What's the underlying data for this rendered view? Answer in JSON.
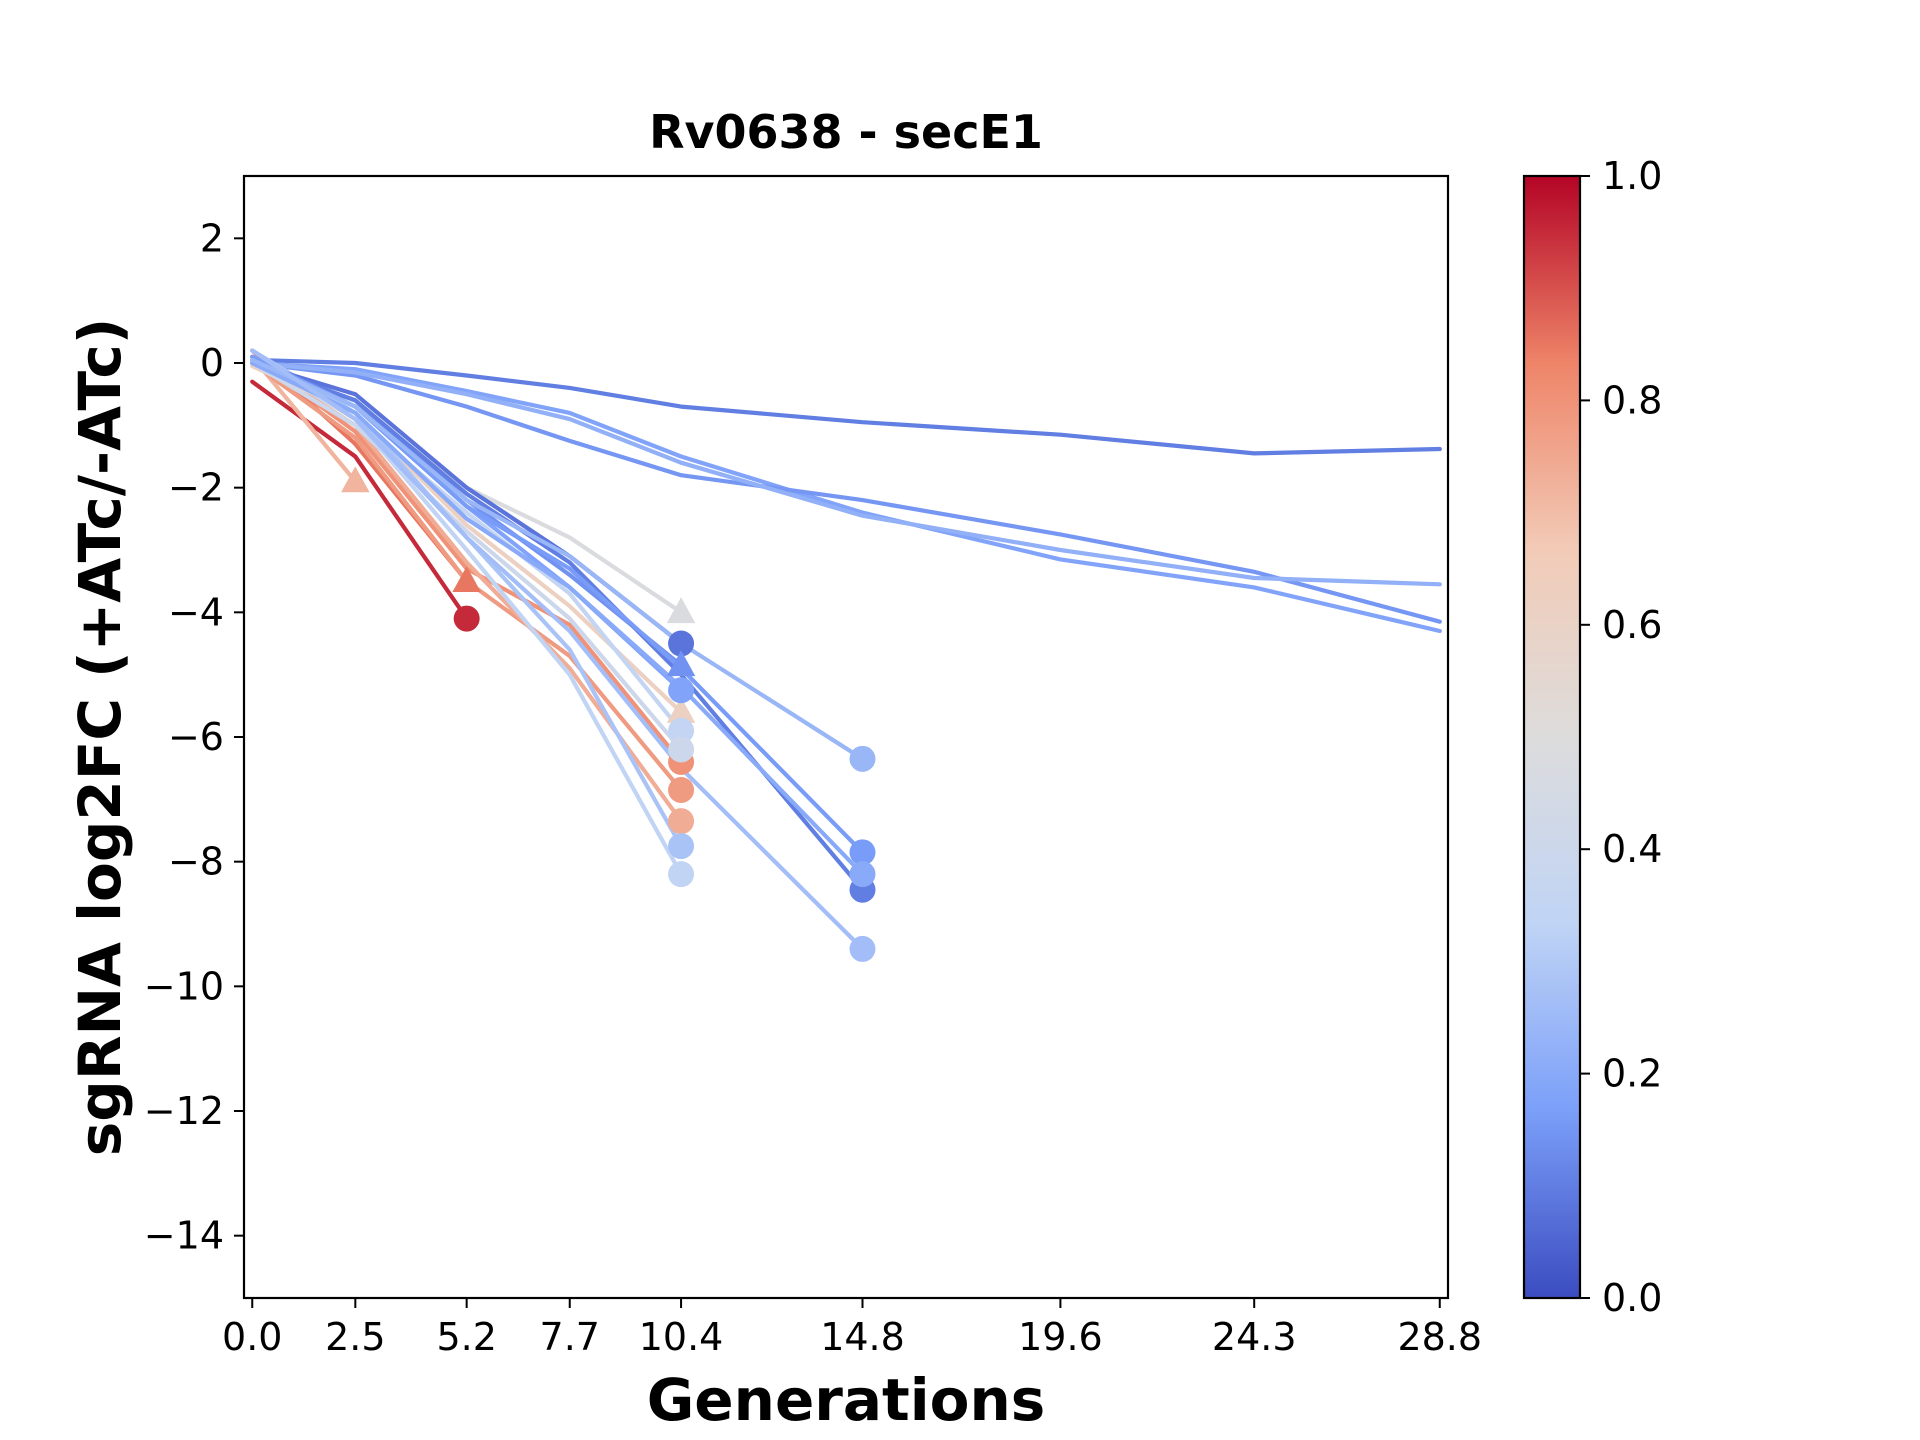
{
  "chart_data": {
    "type": "line",
    "title": "Rv0638 - secE1",
    "xlabel": "Generations",
    "ylabel": "sgRNA log2FC (+ATc/-ATc)",
    "xlim": [
      -0.2,
      29.0
    ],
    "ylim": [
      -15,
      3
    ],
    "x_ticks": [
      0.0,
      2.5,
      5.2,
      7.7,
      10.4,
      14.8,
      19.6,
      24.3,
      28.8
    ],
    "x_tick_labels": [
      "0.0",
      "2.5",
      "5.2",
      "7.7",
      "10.4",
      "14.8",
      "19.6",
      "24.3",
      "28.8"
    ],
    "y_ticks": [
      2,
      0,
      -2,
      -4,
      -6,
      -8,
      -10,
      -12,
      -14
    ],
    "y_tick_labels": [
      "2",
      "0",
      "−2",
      "−4",
      "−6",
      "−8",
      "−10",
      "−12",
      "−14"
    ],
    "colorbar": {
      "colormap": "coolwarm",
      "range": [
        0.0,
        1.0
      ],
      "ticks": [
        0.0,
        0.2,
        0.4,
        0.6,
        0.8,
        1.0
      ],
      "tick_labels": [
        "0.0",
        "0.2",
        "0.4",
        "0.6",
        "0.8",
        "1.0"
      ],
      "stops": [
        "#3b4cc0",
        "#7b9ff9",
        "#c0d4f5",
        "#dddcdc",
        "#f2cbb7",
        "#ee8468",
        "#b40426"
      ]
    },
    "series": [
      {
        "c": 0.1,
        "marker": "none",
        "x": [
          0.0,
          2.5,
          5.2,
          7.7,
          10.4,
          14.8,
          19.6,
          24.3,
          28.8
        ],
        "y": [
          0.05,
          0.0,
          -0.2,
          -0.4,
          -0.7,
          -0.95,
          -1.15,
          -1.45,
          -1.38
        ]
      },
      {
        "c": 0.18,
        "marker": "none",
        "x": [
          0.0,
          2.5,
          5.2,
          7.7,
          10.4,
          14.8,
          19.6,
          24.3,
          28.8
        ],
        "y": [
          0.0,
          -0.1,
          -0.45,
          -0.8,
          -1.5,
          -2.4,
          -3.15,
          -3.6,
          -4.3
        ]
      },
      {
        "c": 0.15,
        "marker": "none",
        "x": [
          0.0,
          2.5,
          5.2,
          7.7,
          10.4,
          14.8,
          19.6,
          24.3,
          28.8
        ],
        "y": [
          0.0,
          -0.2,
          -0.7,
          -1.25,
          -1.8,
          -2.2,
          -2.75,
          -3.35,
          -4.15
        ]
      },
      {
        "c": 0.22,
        "marker": "none",
        "x": [
          0.0,
          2.5,
          5.2,
          7.7,
          10.4,
          14.8,
          19.6,
          24.3,
          28.8
        ],
        "y": [
          0.0,
          -0.15,
          -0.5,
          -0.9,
          -1.6,
          -2.45,
          -3.0,
          -3.45,
          -3.55
        ]
      },
      {
        "c": 0.95,
        "marker": "circle",
        "x": [
          0.0,
          2.5,
          5.2
        ],
        "y": [
          -0.3,
          -1.5,
          -4.1
        ]
      },
      {
        "c": 0.85,
        "marker": "triangle",
        "x": [
          0.0,
          2.5,
          5.2
        ],
        "y": [
          0.2,
          -1.3,
          -3.5
        ]
      },
      {
        "c": 0.72,
        "marker": "triangle",
        "x": [
          0.0,
          2.5
        ],
        "y": [
          0.1,
          -1.9
        ]
      },
      {
        "c": 0.8,
        "marker": "circle",
        "x": [
          0.0,
          2.5,
          5.2,
          7.7,
          10.4
        ],
        "y": [
          0.1,
          -1.1,
          -3.3,
          -4.2,
          -6.4
        ]
      },
      {
        "c": 0.78,
        "marker": "circle",
        "x": [
          0.0,
          2.5,
          5.2,
          7.7,
          10.4
        ],
        "y": [
          0.0,
          -1.2,
          -3.5,
          -4.7,
          -6.85
        ]
      },
      {
        "c": 0.74,
        "marker": "circle",
        "x": [
          0.0,
          2.5,
          5.2,
          7.7,
          10.4
        ],
        "y": [
          0.05,
          -1.0,
          -3.2,
          -4.9,
          -7.35
        ]
      },
      {
        "c": 0.62,
        "marker": "triangle",
        "x": [
          0.0,
          2.5,
          5.2,
          7.7,
          10.4
        ],
        "y": [
          -0.05,
          -0.8,
          -2.6,
          -3.9,
          -5.6
        ]
      },
      {
        "c": 0.48,
        "marker": "triangle",
        "x": [
          0.0,
          2.5,
          5.2,
          7.7,
          10.4
        ],
        "y": [
          0.0,
          -0.7,
          -2.0,
          -2.8,
          -4.0
        ]
      },
      {
        "c": 0.35,
        "marker": "circle",
        "x": [
          0.0,
          2.5,
          5.2,
          7.7,
          10.4
        ],
        "y": [
          0.1,
          -0.9,
          -2.4,
          -3.7,
          -5.9
        ]
      },
      {
        "c": 0.4,
        "marker": "circle",
        "x": [
          0.0,
          2.5,
          5.2,
          7.7,
          10.4
        ],
        "y": [
          0.0,
          -1.0,
          -2.7,
          -4.1,
          -6.2
        ]
      },
      {
        "c": 0.28,
        "marker": "circle",
        "x": [
          0.0,
          2.5,
          5.2,
          7.7,
          10.4
        ],
        "y": [
          0.2,
          -0.8,
          -2.8,
          -4.6,
          -7.75
        ]
      },
      {
        "c": 0.34,
        "marker": "circle",
        "x": [
          0.0,
          2.5,
          5.2,
          7.7,
          10.4
        ],
        "y": [
          0.1,
          -0.9,
          -3.0,
          -5.0,
          -8.2
        ]
      },
      {
        "c": 0.08,
        "marker": "circle",
        "x": [
          0.0,
          2.5,
          5.2,
          7.7,
          10.4
        ],
        "y": [
          0.0,
          -0.5,
          -2.0,
          -3.1,
          -4.5
        ]
      },
      {
        "c": 0.14,
        "marker": "triangle",
        "x": [
          0.0,
          2.5,
          5.2,
          7.7,
          10.4
        ],
        "y": [
          0.0,
          -0.6,
          -2.2,
          -3.4,
          -4.85
        ]
      },
      {
        "c": 0.18,
        "marker": "circle",
        "x": [
          0.0,
          2.5,
          5.2,
          7.7,
          10.4
        ],
        "y": [
          0.1,
          -0.7,
          -2.3,
          -3.6,
          -5.25
        ]
      },
      {
        "c": 0.1,
        "marker": "circle",
        "x": [
          0.0,
          2.5,
          5.2,
          7.7,
          10.4,
          14.8
        ],
        "y": [
          0.0,
          -0.6,
          -2.1,
          -3.2,
          -5.0,
          -8.45
        ]
      },
      {
        "c": 0.16,
        "marker": "circle",
        "x": [
          0.0,
          2.5,
          5.2,
          7.7,
          10.4,
          14.8
        ],
        "y": [
          0.1,
          -0.7,
          -2.3,
          -3.3,
          -4.9,
          -7.85
        ]
      },
      {
        "c": 0.2,
        "marker": "circle",
        "x": [
          0.0,
          2.5,
          5.2,
          7.7,
          10.4,
          14.8
        ],
        "y": [
          0.0,
          -0.8,
          -2.5,
          -3.6,
          -5.2,
          -8.2
        ]
      },
      {
        "c": 0.24,
        "marker": "circle",
        "x": [
          0.0,
          2.5,
          5.2,
          7.7,
          10.4,
          14.8
        ],
        "y": [
          0.05,
          -0.7,
          -2.2,
          -3.1,
          -4.5,
          -6.35
        ]
      },
      {
        "c": 0.26,
        "marker": "circle",
        "x": [
          0.0,
          2.5,
          5.2,
          7.7,
          10.4,
          14.8
        ],
        "y": [
          0.2,
          -0.9,
          -2.8,
          -4.3,
          -6.5,
          -9.4
        ]
      }
    ]
  }
}
